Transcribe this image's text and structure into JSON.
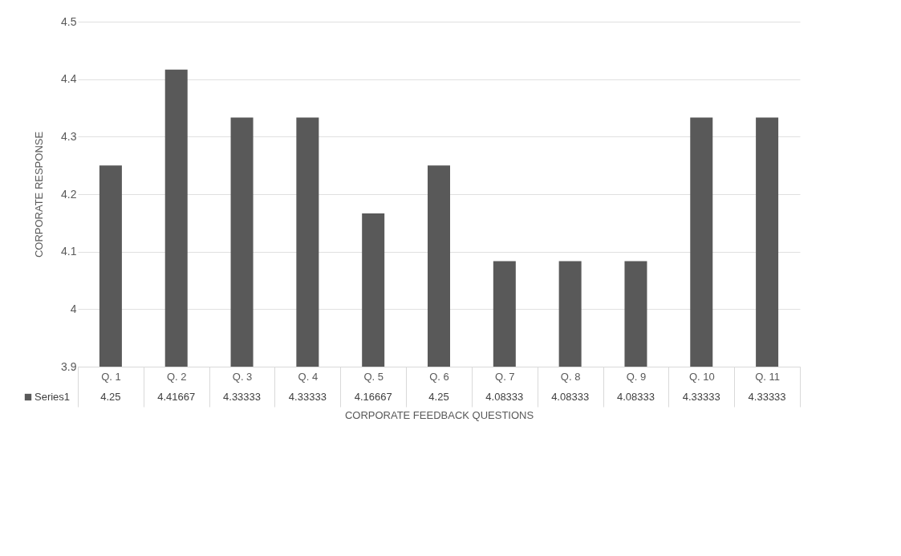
{
  "chart_data": {
    "type": "bar",
    "xlabel": "CORPORATE FEEDBACK QUESTIONS",
    "ylabel": "CORPORATE RESPONSE",
    "categories": [
      "Q. 1",
      "Q. 2",
      "Q. 3",
      "Q. 4",
      "Q. 5",
      "Q. 6",
      "Q. 7",
      "Q. 8",
      "Q. 9",
      "Q. 10",
      "Q. 11"
    ],
    "series": [
      {
        "name": "Series1",
        "color": "#595959",
        "values": [
          4.25,
          4.41667,
          4.33333,
          4.33333,
          4.16667,
          4.25,
          4.08333,
          4.08333,
          4.08333,
          4.33333,
          4.33333
        ]
      }
    ],
    "ylim": [
      3.9,
      4.5
    ],
    "yticks": [
      3.9,
      4,
      4.1,
      4.2,
      4.3,
      4.4,
      4.5
    ],
    "grid": "y",
    "legend": "bottom",
    "data_labels": true
  }
}
